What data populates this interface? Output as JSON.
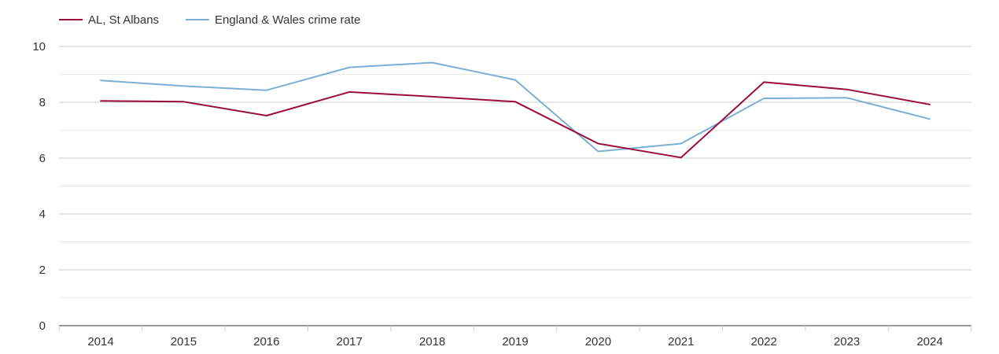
{
  "chart_data": {
    "type": "line",
    "title": "",
    "xlabel": "",
    "ylabel": "",
    "categories": [
      "2014",
      "2015",
      "2016",
      "2017",
      "2018",
      "2019",
      "2020",
      "2021",
      "2022",
      "2023",
      "2024"
    ],
    "ylim": [
      0,
      10
    ],
    "yticks": [
      "0",
      "2",
      "4",
      "6",
      "8",
      "10"
    ],
    "grid": true,
    "legend_position": "top-left",
    "series": [
      {
        "name": "AL, St Albans",
        "color": "#9b0d3a",
        "values": [
          8.05,
          8.02,
          7.52,
          8.37,
          8.2,
          8.02,
          6.52,
          6.02,
          8.72,
          8.46,
          7.92
        ]
      },
      {
        "name": "England & Wales crime rate",
        "color": "#7bafd4",
        "values": [
          8.78,
          8.58,
          8.43,
          9.25,
          9.42,
          8.8,
          6.24,
          6.52,
          8.14,
          8.16,
          7.4
        ]
      }
    ]
  }
}
